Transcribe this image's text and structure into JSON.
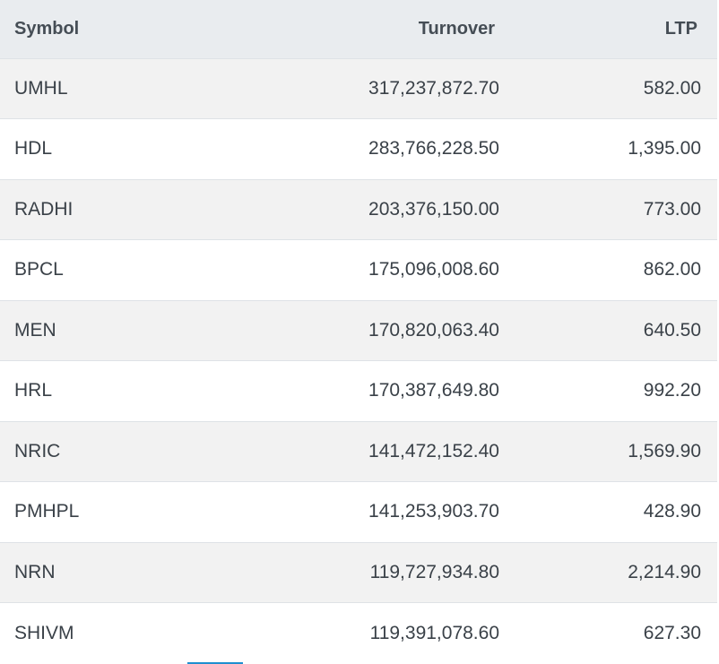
{
  "table": {
    "headers": {
      "symbol": "Symbol",
      "turnover": "Turnover",
      "ltp": "LTP"
    },
    "rows": [
      {
        "symbol": "UMHL",
        "turnover": "317,237,872.70",
        "ltp": "582.00"
      },
      {
        "symbol": "HDL",
        "turnover": "283,766,228.50",
        "ltp": "1,395.00"
      },
      {
        "symbol": "RADHI",
        "turnover": "203,376,150.00",
        "ltp": "773.00"
      },
      {
        "symbol": "BPCL",
        "turnover": "175,096,008.60",
        "ltp": "862.00"
      },
      {
        "symbol": "MEN",
        "turnover": "170,820,063.40",
        "ltp": "640.50"
      },
      {
        "symbol": "HRL",
        "turnover": "170,387,649.80",
        "ltp": "992.20"
      },
      {
        "symbol": "NRIC",
        "turnover": "141,472,152.40",
        "ltp": "1,569.90"
      },
      {
        "symbol": "PMHPL",
        "turnover": "141,253,903.70",
        "ltp": "428.90"
      },
      {
        "symbol": "NRN",
        "turnover": "119,727,934.80",
        "ltp": "2,214.90"
      },
      {
        "symbol": "SHIVM",
        "turnover": "119,391,078.60",
        "ltp": "627.30"
      }
    ]
  },
  "colors": {
    "header_bg": "#e9ecef",
    "row_stripe": "#f2f2f2",
    "accent": "#1e8fd0"
  }
}
